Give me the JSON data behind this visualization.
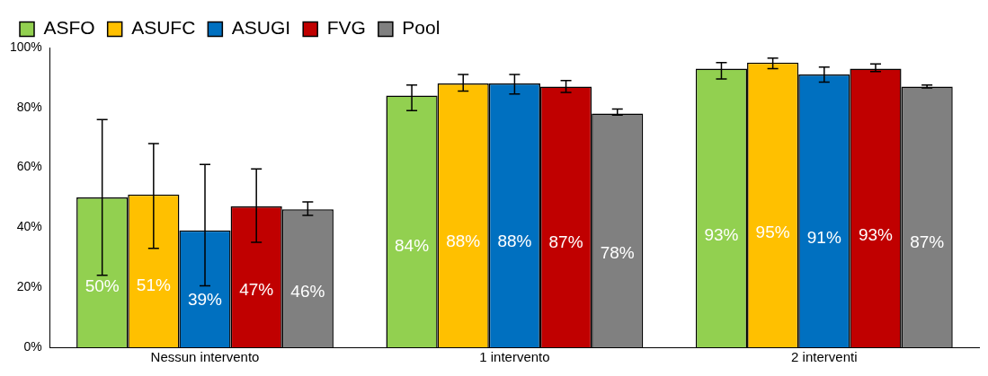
{
  "chart_data": {
    "type": "bar",
    "categories": [
      "Nessun intervento",
      "1 intervento",
      "2 interventi"
    ],
    "series": [
      {
        "name": "ASFO",
        "color": "#92d050",
        "values": [
          50,
          84,
          93
        ],
        "value_labels": [
          "50%",
          "84%",
          "93%"
        ],
        "errors": [
          [
            24,
            76
          ],
          [
            79,
            87.5
          ],
          [
            89.5,
            95
          ]
        ]
      },
      {
        "name": "ASUFC",
        "color": "#ffc000",
        "values": [
          51,
          88,
          95
        ],
        "value_labels": [
          "51%",
          "88%",
          "95%"
        ],
        "errors": [
          [
            33,
            68
          ],
          [
            85.5,
            91
          ],
          [
            93,
            96.5
          ]
        ]
      },
      {
        "name": "ASUGI",
        "color": "#0070c0",
        "values": [
          39,
          88,
          91
        ],
        "value_labels": [
          "39%",
          "88%",
          "91%"
        ],
        "errors": [
          [
            20.5,
            61
          ],
          [
            84.5,
            91
          ],
          [
            88.5,
            93.5
          ]
        ]
      },
      {
        "name": "FVG",
        "color": "#c00000",
        "values": [
          47,
          87,
          93
        ],
        "value_labels": [
          "47%",
          "87%",
          "93%"
        ],
        "errors": [
          [
            35,
            59.5
          ],
          [
            85,
            89
          ],
          [
            92,
            94.5
          ]
        ]
      },
      {
        "name": "Pool",
        "color": "#808080",
        "values": [
          46,
          78,
          87
        ],
        "value_labels": [
          "46%",
          "78%",
          "87%"
        ],
        "errors": [
          [
            44,
            48.5
          ],
          [
            77.5,
            79.5
          ],
          [
            86.5,
            87.5
          ]
        ]
      }
    ],
    "ylim": [
      0,
      100
    ],
    "yticks": [
      {
        "value": 0,
        "label": "0%"
      },
      {
        "value": 20,
        "label": "20%"
      },
      {
        "value": 40,
        "label": "40%"
      },
      {
        "value": 60,
        "label": "60%"
      },
      {
        "value": 80,
        "label": "80%"
      },
      {
        "value": 100,
        "label": "100%"
      }
    ],
    "grid": false,
    "legend": "top left"
  }
}
